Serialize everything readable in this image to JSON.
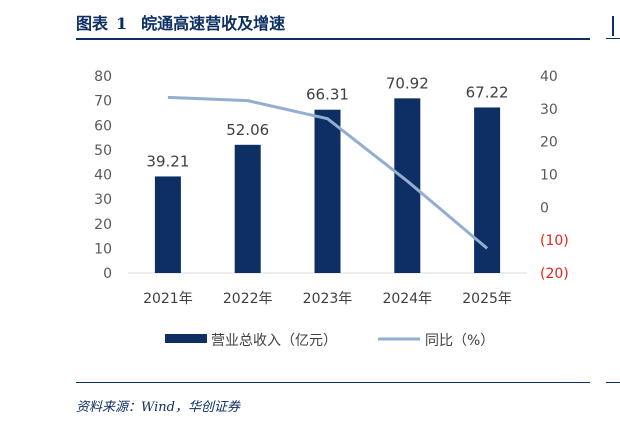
{
  "header": {
    "figure_label": "图表",
    "figure_number": "1",
    "title": "皖通高速营收及增速"
  },
  "source": "资料来源：Wind，华创证券",
  "chart_data": {
    "type": "bar",
    "categories": [
      "2021年",
      "2022年",
      "2023年",
      "2024年",
      "2025年"
    ],
    "series": [
      {
        "name": "营业总收入（亿元）",
        "type": "bar",
        "axis": "left",
        "color": "#0d2f63",
        "values": [
          39.21,
          52.06,
          66.31,
          70.92,
          67.22
        ],
        "labels": [
          "39.21",
          "52.06",
          "66.31",
          "70.92",
          "67.22"
        ]
      },
      {
        "name": "同比（%）",
        "type": "line",
        "axis": "right",
        "color": "#93aed0",
        "values": [
          33.5,
          32.5,
          27,
          8,
          -12.5
        ]
      }
    ],
    "left_axis": {
      "min": 0,
      "max": 80,
      "ticks": [
        "0",
        "10",
        "20",
        "30",
        "40",
        "50",
        "60",
        "70",
        "80"
      ]
    },
    "right_axis": {
      "min": -20,
      "max": 40,
      "ticks": [
        "(20)",
        "(10)",
        "0",
        "10",
        "20",
        "30",
        "40"
      ],
      "negative_color": "#e8221b"
    },
    "legend_position": "bottom",
    "grid": false
  }
}
